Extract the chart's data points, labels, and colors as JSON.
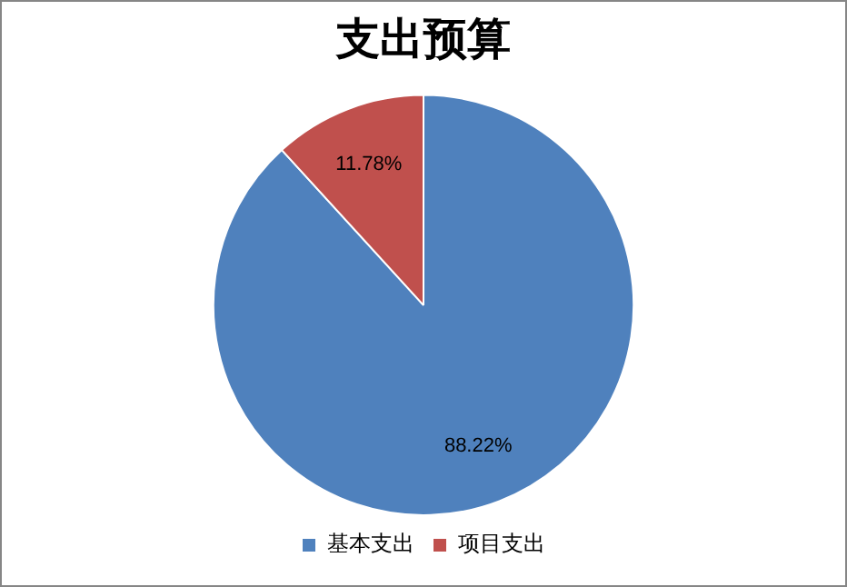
{
  "chart_data": {
    "type": "pie",
    "title": "支出预算",
    "categories": [
      "基本支出",
      "项目支出"
    ],
    "values": [
      88.22,
      11.78
    ],
    "colors": [
      "#4f81bd",
      "#c0504d"
    ],
    "value_labels": [
      "88.22%",
      "11.78%"
    ],
    "legend": "bottom"
  }
}
